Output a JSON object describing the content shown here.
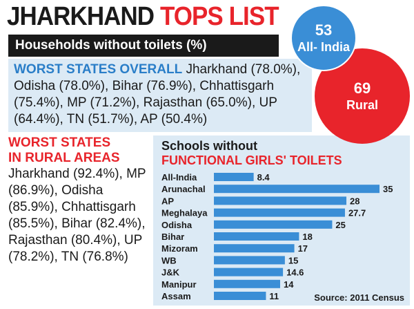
{
  "title": {
    "part1": "JHARKHAND",
    "part2": "TOPS LIST"
  },
  "subtitle": "Households without toilets (%)",
  "circles": {
    "all_india": {
      "value": "53",
      "label": "All- India"
    },
    "rural": {
      "value": "69",
      "label": "Rural"
    }
  },
  "overall": {
    "heading": "WORST STATES OVERALL",
    "text": "Jharkhand (78.0%), Odisha (78.0%), Bihar (76.9%), Chhattisgarh (75.4%), MP (71.2%), Rajasthan (65.0%), UP (64.4%), TN (51.7%), AP (50.4%)"
  },
  "rural": {
    "heading_line1": "WORST STATES",
    "heading_line2": "IN RURAL AREAS",
    "text": "Jharkhand (92.4%), MP (86.9%), Odisha (85.9%), Chhattisgarh (85.5%), Bihar (82.4%), Rajasthan (80.4%), UP (78.2%), TN (76.8%)"
  },
  "chart_data": {
    "type": "bar",
    "orientation": "horizontal",
    "title_line1": "Schools without",
    "title_line2": "FUNCTIONAL GIRLS' TOILETS",
    "categories": [
      "All-India",
      "Arunachal",
      "AP",
      "Meghalaya",
      "Odisha",
      "Bihar",
      "Mizoram",
      "WB",
      "J&K",
      "Manipur",
      "Assam"
    ],
    "values": [
      8.4,
      35,
      28,
      27.7,
      25,
      18,
      17,
      15,
      14.6,
      14,
      11
    ],
    "value_labels": [
      "8.4",
      "35",
      "28",
      "27.7",
      "25",
      "18",
      "17",
      "15",
      "14.6",
      "14",
      "11"
    ],
    "xlim": [
      0,
      35
    ],
    "grid": false,
    "bar_color": "#3a8ed6",
    "source": "Source: 2011 Census"
  }
}
